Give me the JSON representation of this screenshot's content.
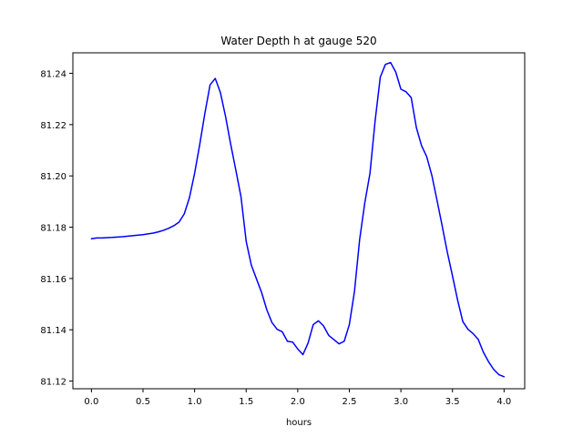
{
  "chart_data": {
    "type": "line",
    "title": "Water Depth h at gauge 520",
    "xlabel": "hours",
    "ylabel": "",
    "xlim": [
      -0.18,
      4.2
    ],
    "ylim": [
      81.117,
      81.248
    ],
    "xticks": [
      0.0,
      0.5,
      1.0,
      1.5,
      2.0,
      2.5,
      3.0,
      3.5,
      4.0
    ],
    "xtick_labels": [
      "0.0",
      "0.5",
      "1.0",
      "1.5",
      "2.0",
      "2.5",
      "3.0",
      "3.5",
      "4.0"
    ],
    "yticks": [
      81.12,
      81.14,
      81.16,
      81.18,
      81.2,
      81.22,
      81.24
    ],
    "ytick_labels": [
      "81.12",
      "81.14",
      "81.16",
      "81.18",
      "81.20",
      "81.22",
      "81.24"
    ],
    "grid": false,
    "series": [
      {
        "color": "#0000ff",
        "x": [
          0.0,
          0.05,
          0.1,
          0.2,
          0.3,
          0.4,
          0.5,
          0.6,
          0.65,
          0.7,
          0.75,
          0.8,
          0.85,
          0.9,
          0.95,
          1.0,
          1.05,
          1.1,
          1.15,
          1.2,
          1.25,
          1.3,
          1.35,
          1.4,
          1.45,
          1.5,
          1.55,
          1.6,
          1.65,
          1.7,
          1.75,
          1.8,
          1.85,
          1.9,
          1.95,
          2.0,
          2.05,
          2.1,
          2.15,
          2.2,
          2.25,
          2.3,
          2.35,
          2.4,
          2.45,
          2.5,
          2.55,
          2.6,
          2.65,
          2.7,
          2.75,
          2.8,
          2.85,
          2.9,
          2.95,
          3.0,
          3.05,
          3.1,
          3.15,
          3.2,
          3.25,
          3.3,
          3.35,
          3.4,
          3.45,
          3.5,
          3.55,
          3.6,
          3.65,
          3.7,
          3.75,
          3.8,
          3.85,
          3.9,
          3.95,
          4.0
        ],
        "y": [
          81.1755,
          81.1758,
          81.1758,
          81.176,
          81.1763,
          81.1767,
          81.1771,
          81.1777,
          81.1782,
          81.1788,
          81.1796,
          81.1806,
          81.182,
          81.1852,
          81.1915,
          81.201,
          81.2123,
          81.2245,
          81.2355,
          81.238,
          81.2325,
          81.2232,
          81.2123,
          81.2022,
          81.1918,
          81.1745,
          81.1652,
          81.1598,
          81.1545,
          81.1478,
          81.1428,
          81.1402,
          81.1392,
          81.1355,
          81.1352,
          81.1325,
          81.1303,
          81.1348,
          81.142,
          81.1435,
          81.1415,
          81.1378,
          81.1362,
          81.1345,
          81.1355,
          81.142,
          81.155,
          81.1752,
          81.1895,
          81.201,
          81.2215,
          81.2385,
          81.2435,
          81.2442,
          81.2405,
          81.2338,
          81.2328,
          81.2305,
          81.2188,
          81.2118,
          81.2075,
          81.2002,
          81.1905,
          81.1805,
          81.1702,
          81.161,
          81.1515,
          81.1432,
          81.1402,
          81.1385,
          81.1362,
          81.1312,
          81.1275,
          81.1245,
          81.1225,
          81.1217
        ]
      }
    ]
  }
}
